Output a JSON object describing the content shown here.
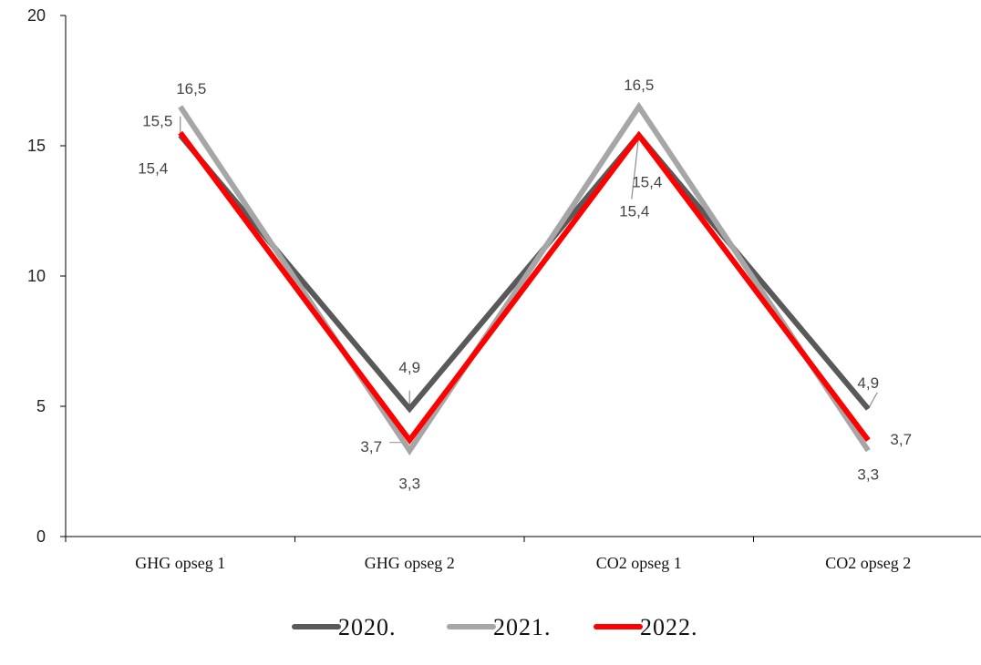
{
  "chart_data": {
    "type": "line",
    "categories": [
      "GHG opseg 1",
      "GHG opseg 2",
      "CO2 opseg 1",
      "CO2 opseg 2"
    ],
    "series": [
      {
        "name": "2020.",
        "values": [
          15.4,
          4.9,
          15.4,
          4.9
        ],
        "labels": [
          "15,4",
          "4,9",
          "15,4",
          "4,9"
        ],
        "color": "#595959"
      },
      {
        "name": "2021.",
        "values": [
          16.5,
          3.3,
          16.5,
          3.3
        ],
        "labels": [
          "16,5",
          "3,3",
          "16,5",
          "3,3"
        ],
        "color": "#A6A6A6"
      },
      {
        "name": "2022.",
        "values": [
          15.5,
          3.7,
          15.4,
          3.7
        ],
        "labels": [
          "15,5",
          "3,7",
          "15,4",
          "3,7"
        ],
        "color": "#FF0000"
      }
    ],
    "y_ticks": [
      "0",
      "5",
      "10",
      "15",
      "20"
    ],
    "ylim": [
      0,
      20
    ],
    "grid": false,
    "legend": "bottom",
    "title": "",
    "xlabel": "",
    "ylabel": ""
  }
}
